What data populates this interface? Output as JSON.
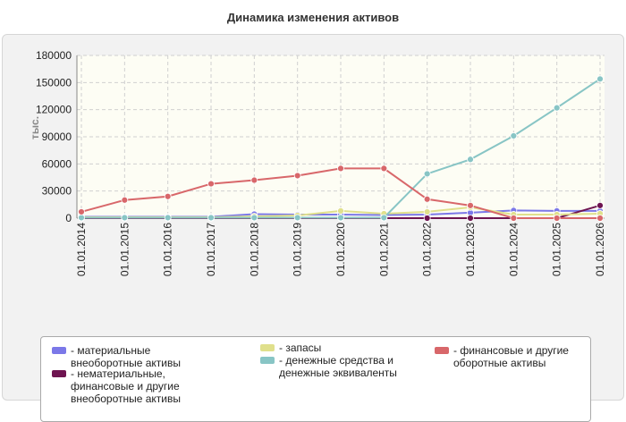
{
  "chart_data": {
    "type": "line",
    "title": "Динамика изменения активов",
    "ylabel": "тыс.",
    "xlabel": "",
    "ylim": [
      0,
      180000
    ],
    "yticks": [
      0,
      30000,
      60000,
      90000,
      120000,
      150000,
      180000
    ],
    "categories": [
      "01.01.2014",
      "01.01.2015",
      "01.01.2016",
      "01.01.2017",
      "01.01.2018",
      "01.01.2019",
      "01.01.2020",
      "01.01.2021",
      "01.01.2022",
      "01.01.2023",
      "01.01.2024",
      "01.01.2025",
      "01.01.2026"
    ],
    "legend_position": "bottom",
    "grid": true,
    "series": [
      {
        "name": "- материальные внеоборотные активы",
        "color": "#7b78e8",
        "values": [
          1500,
          1500,
          1500,
          1500,
          4500,
          4000,
          4000,
          3500,
          4000,
          6000,
          8500,
          8000,
          8000
        ]
      },
      {
        "name": "- нематериальные, финансовые и другие внеоборотные активы",
        "color": "#6e1450",
        "values": [
          0,
          0,
          0,
          0,
          0,
          0,
          0,
          0,
          0,
          0,
          0,
          0,
          14000
        ]
      },
      {
        "name": "- запасы",
        "color": "#e0e08c",
        "values": [
          1000,
          1000,
          1000,
          1000,
          2000,
          3000,
          8000,
          5000,
          7000,
          12000,
          4000,
          4000,
          5000
        ]
      },
      {
        "name": "- денежные средства и денежные эквиваленты",
        "color": "#88c5c5",
        "values": [
          500,
          500,
          500,
          500,
          500,
          500,
          500,
          500,
          49000,
          65000,
          91000,
          122000,
          154000
        ]
      },
      {
        "name": "- финансовые и другие оборотные активы",
        "color": "#d8676a",
        "values": [
          7000,
          20000,
          24000,
          38000,
          42000,
          47000,
          55000,
          55000,
          21000,
          14000,
          0,
          0,
          0
        ]
      }
    ]
  }
}
